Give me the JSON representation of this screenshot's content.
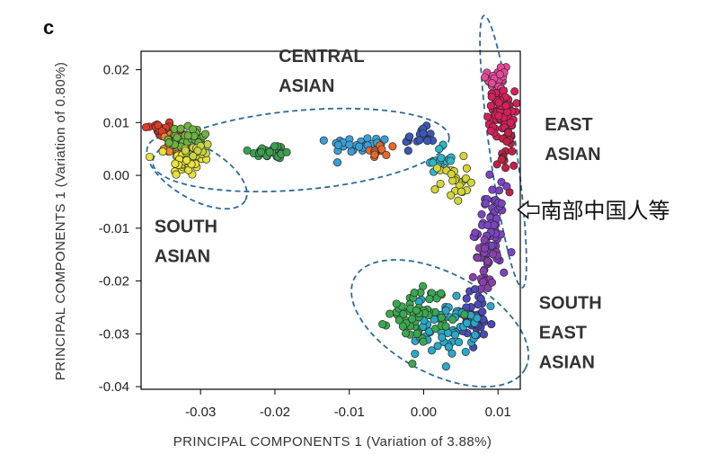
{
  "panel_label": "c",
  "chart_data": {
    "type": "scatter",
    "title": "",
    "xlabel": "PRINCIPAL COMPONENTS 1 (Variation of 3.88%)",
    "ylabel": "PRINCIPAL COMPONENTS 1 (Variation of 0.80%)",
    "xlim": [
      -0.038,
      0.013
    ],
    "ylim": [
      -0.0405,
      0.0235
    ],
    "x_ticks": [
      -0.03,
      -0.02,
      -0.01,
      0.0,
      0.01
    ],
    "x_tick_labels": [
      "-0.03",
      "-0.02",
      "-0.01",
      "0.00",
      "0.01"
    ],
    "y_ticks": [
      0.02,
      0.01,
      0.0,
      -0.01,
      -0.02,
      -0.03,
      -0.04
    ],
    "y_tick_labels": [
      "0.02",
      "0.01",
      "0.00",
      "-0.01",
      "-0.02",
      "-0.03",
      "-0.04"
    ],
    "grid": false,
    "group_labels": [
      {
        "lines": [
          "CENTRAL",
          "ASIAN"
        ],
        "x": -0.0195,
        "y": 0.0215
      },
      {
        "lines": [
          "EAST",
          "ASIAN"
        ],
        "x": 0.0163,
        "y": 0.0085
      },
      {
        "lines": [
          "SOUTH",
          "ASIAN"
        ],
        "x": -0.0362,
        "y": -0.0108
      },
      {
        "lines": [
          "SOUTH",
          "EAST",
          "ASIAN"
        ],
        "x": 0.0155,
        "y": -0.0253
      }
    ],
    "group_regions": [
      {
        "name": "Central Asian",
        "cx": -0.0165,
        "cy": 0.0048,
        "rx": 0.02,
        "ry": 0.0075,
        "angle": -5
      },
      {
        "name": "South Asian",
        "cx": -0.0305,
        "cy": 0.0005,
        "rx": 0.0075,
        "ry": 0.005,
        "angle": 30
      },
      {
        "name": "East Asian",
        "cx": 0.0107,
        "cy": 0.0045,
        "rx": 0.0018,
        "ry": 0.026,
        "angle": -8
      },
      {
        "name": "South East Asian",
        "cx": 0.0022,
        "cy": -0.028,
        "rx": 0.013,
        "ry": 0.0095,
        "angle": 28
      }
    ],
    "clusters": [
      {
        "color": "#e03a2a",
        "cx": -0.0355,
        "cy": 0.0088,
        "sx": 0.001,
        "sy": 0.0008,
        "n": 25
      },
      {
        "color": "#e8882a",
        "cx": -0.0335,
        "cy": 0.006,
        "sx": 0.001,
        "sy": 0.0012,
        "n": 18
      },
      {
        "color": "#6db33f",
        "cx": -0.0315,
        "cy": 0.0068,
        "sx": 0.0015,
        "sy": 0.0015,
        "n": 35
      },
      {
        "color": "#e8e23a",
        "cx": -0.032,
        "cy": 0.0028,
        "sx": 0.0012,
        "sy": 0.0015,
        "n": 40
      },
      {
        "color": "#c9d441",
        "cx": -0.0305,
        "cy": 0.0045,
        "sx": 0.001,
        "sy": 0.001,
        "n": 15
      },
      {
        "color": "#3aa050",
        "cx": -0.0205,
        "cy": 0.0045,
        "sx": 0.0015,
        "sy": 0.0007,
        "n": 30
      },
      {
        "color": "#3a9fd8",
        "cx": -0.0085,
        "cy": 0.0058,
        "sx": 0.002,
        "sy": 0.0008,
        "n": 30
      },
      {
        "color": "#e8682a",
        "cx": -0.0058,
        "cy": 0.0045,
        "sx": 0.001,
        "sy": 0.0008,
        "n": 12
      },
      {
        "color": "#3a58b8",
        "cx": -0.0005,
        "cy": 0.007,
        "sx": 0.001,
        "sy": 0.001,
        "n": 20
      },
      {
        "color": "#2fb5c8",
        "cx": 0.002,
        "cy": 0.003,
        "sx": 0.001,
        "sy": 0.0012,
        "n": 15
      },
      {
        "color": "#d4d43a",
        "cx": 0.004,
        "cy": -0.001,
        "sx": 0.001,
        "sy": 0.002,
        "n": 25
      },
      {
        "color": "#e8479a",
        "cx": 0.01,
        "cy": 0.0185,
        "sx": 0.0007,
        "sy": 0.002,
        "n": 30
      },
      {
        "color": "#d91e5b",
        "cx": 0.0105,
        "cy": 0.012,
        "sx": 0.0009,
        "sy": 0.002,
        "n": 70
      },
      {
        "color": "#c42046",
        "cx": 0.011,
        "cy": 0.004,
        "sx": 0.0006,
        "sy": 0.0025,
        "n": 20
      },
      {
        "color": "#7b44c4",
        "cx": 0.009,
        "cy": -0.01,
        "sx": 0.001,
        "sy": 0.004,
        "n": 60
      },
      {
        "color": "#8a3fb0",
        "cx": 0.0085,
        "cy": -0.0175,
        "sx": 0.0008,
        "sy": 0.0025,
        "n": 25
      },
      {
        "color": "#4a4ab8",
        "cx": 0.007,
        "cy": -0.0275,
        "sx": 0.0012,
        "sy": 0.003,
        "n": 35
      },
      {
        "color": "#2aa8c8",
        "cx": 0.003,
        "cy": -0.0285,
        "sx": 0.002,
        "sy": 0.0028,
        "n": 70
      },
      {
        "color": "#3aa850",
        "cx": -0.0005,
        "cy": -0.026,
        "sx": 0.002,
        "sy": 0.0025,
        "n": 60
      }
    ]
  },
  "annotation": {
    "text": "南部中国人等",
    "arrow": "hollow-left-arrow",
    "x": 0.0127,
    "y": -0.0065
  }
}
